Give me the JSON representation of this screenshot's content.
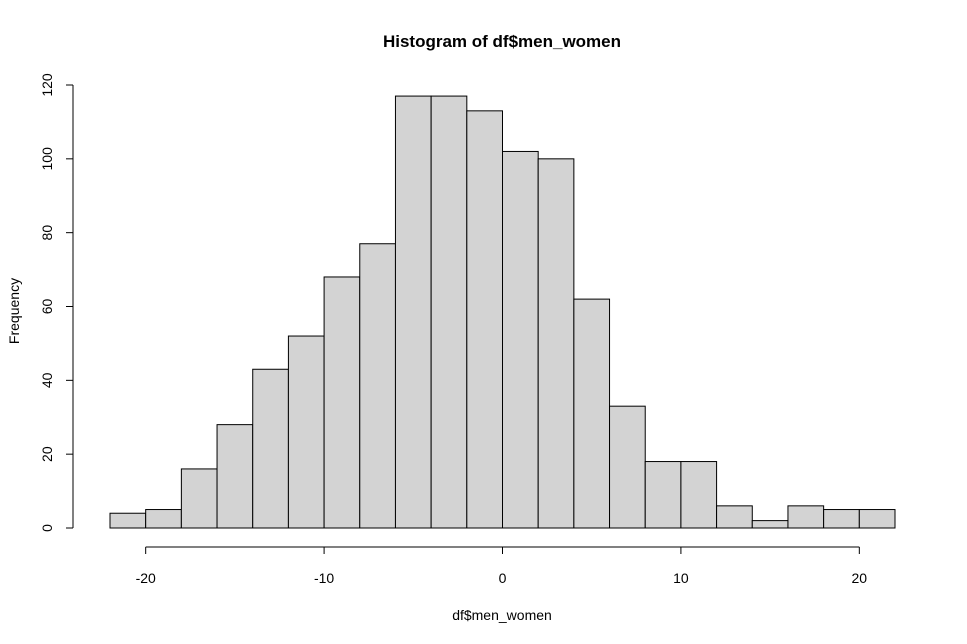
{
  "chart_data": {
    "type": "bar",
    "title": "Histogram of df$men_women",
    "xlabel": "df$men_women",
    "ylabel": "Frequency",
    "bin_edges": [
      -22,
      -20,
      -18,
      -16,
      -14,
      -12,
      -10,
      -8,
      -6,
      -4,
      -2,
      0,
      2,
      4,
      6,
      8,
      10,
      12,
      14,
      16,
      18,
      20,
      22
    ],
    "values": [
      4,
      5,
      16,
      28,
      43,
      52,
      68,
      77,
      117,
      117,
      113,
      102,
      100,
      62,
      33,
      18,
      18,
      6,
      2,
      6,
      5,
      5
    ],
    "xlim": [
      -22,
      22
    ],
    "ylim": [
      0,
      120
    ],
    "x_ticks": [
      -20,
      -10,
      0,
      10,
      20
    ],
    "y_ticks": [
      0,
      20,
      40,
      60,
      80,
      100,
      120
    ],
    "x_tick_labels": [
      "-20",
      "-10",
      "0",
      "10",
      "20"
    ],
    "y_tick_labels": [
      "0",
      "20",
      "40",
      "60",
      "80",
      "100",
      "120"
    ],
    "grid": false,
    "bar_color": "#d3d3d3",
    "edge_color": "#000000"
  }
}
